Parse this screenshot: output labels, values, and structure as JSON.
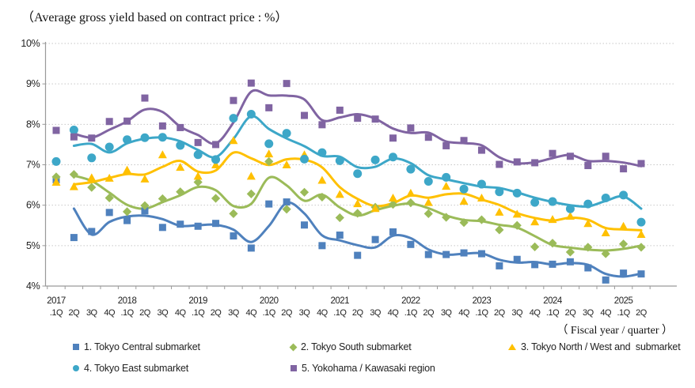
{
  "chart_data": {
    "type": "scatter",
    "title": "（Average gross yield based on contract price : %）",
    "x_axis_label": "（ Fiscal year / quarter ）",
    "ylabel": "",
    "ylim": [
      4,
      10
    ],
    "y_tick_labels": [
      "4%",
      "5%",
      "6%",
      "7%",
      "8%",
      "9%",
      "10%"
    ],
    "grid": "horizontal-dotted",
    "legend_position": "bottom",
    "trend_line": "2-quarter moving average drawn through each series",
    "years": [
      "2017",
      "2018",
      "2019",
      "2020",
      "2021",
      "2022",
      "2023",
      "2024",
      "2025"
    ],
    "quarters": [
      ".1Q",
      "2Q",
      "3Q",
      "4Q",
      ".1Q",
      "2Q",
      "3Q",
      "4Q",
      ".1Q",
      "2Q",
      "3Q",
      "4Q",
      ".1Q",
      "2Q",
      "3Q",
      "4Q",
      ".1Q",
      "2Q",
      "3Q",
      "4Q",
      ".1Q",
      "2Q",
      "3Q",
      "4Q",
      ".1Q",
      "2Q",
      "3Q",
      "4Q",
      ".1Q",
      "2Q",
      "3Q",
      "4Q",
      ".1Q",
      "2Q"
    ],
    "series": [
      {
        "name": "1. Tokyo Central submarket",
        "marker": "square",
        "color": "#4F81BD",
        "values": [
          6.63,
          5.2,
          5.35,
          5.82,
          5.62,
          5.86,
          5.45,
          5.53,
          5.48,
          5.55,
          5.24,
          4.94,
          6.03,
          6.08,
          5.51,
          5.0,
          5.26,
          4.76,
          5.15,
          5.34,
          5.03,
          4.78,
          4.78,
          4.82,
          4.8,
          4.5,
          4.66,
          4.53,
          4.54,
          4.6,
          4.45,
          4.15,
          4.32,
          4.3
        ]
      },
      {
        "name": "2. Tokyo South submarket",
        "marker": "diamond",
        "color": "#9BBB59",
        "values": [
          6.7,
          6.76,
          6.44,
          6.18,
          5.84,
          5.99,
          6.16,
          6.33,
          6.57,
          6.17,
          5.79,
          6.28,
          7.08,
          5.9,
          6.32,
          6.2,
          5.69,
          5.8,
          5.95,
          6.02,
          6.06,
          5.79,
          5.7,
          5.57,
          5.64,
          5.39,
          5.5,
          4.97,
          5.06,
          4.84,
          4.96,
          4.8,
          5.04,
          4.96
        ]
      },
      {
        "name": "3. Tokyo North / West and  submarket",
        "marker": "triangle",
        "color": "#FFC000",
        "values": [
          6.57,
          6.46,
          6.68,
          6.67,
          6.87,
          6.65,
          7.25,
          6.94,
          6.72,
          7.0,
          7.6,
          6.72,
          7.27,
          7.0,
          7.25,
          6.62,
          6.27,
          6.04,
          5.92,
          6.18,
          6.3,
          6.07,
          6.47,
          6.1,
          6.18,
          5.83,
          5.78,
          5.59,
          5.65,
          5.73,
          5.55,
          5.32,
          5.48,
          5.28
        ]
      },
      {
        "name": "4. Tokyo East submarket",
        "marker": "circle",
        "color": "#3DA7C8",
        "values": [
          7.08,
          7.86,
          7.17,
          7.44,
          7.62,
          7.67,
          7.68,
          7.48,
          7.25,
          7.13,
          8.15,
          8.25,
          7.52,
          7.78,
          7.14,
          7.3,
          7.1,
          6.78,
          7.12,
          7.19,
          6.89,
          6.59,
          6.69,
          6.4,
          6.52,
          6.33,
          6.3,
          6.07,
          6.09,
          5.91,
          6.03,
          6.18,
          6.25,
          5.58
        ]
      },
      {
        "name": "5. Yokohama / Kawasaki region",
        "marker": "square",
        "color": "#8064A2",
        "values": [
          7.85,
          7.69,
          7.66,
          8.07,
          8.08,
          8.65,
          7.96,
          7.92,
          7.55,
          7.5,
          8.59,
          9.02,
          8.41,
          9.01,
          8.22,
          7.99,
          8.35,
          8.15,
          8.13,
          7.66,
          7.91,
          7.68,
          7.47,
          7.6,
          7.36,
          7.01,
          7.07,
          7.05,
          7.28,
          7.21,
          6.98,
          7.21,
          6.9,
          7.03
        ]
      }
    ]
  },
  "style": {
    "gridline_color": "#C6C6C6",
    "axis_color": "#9A9A9A",
    "label_color": "#222222"
  }
}
